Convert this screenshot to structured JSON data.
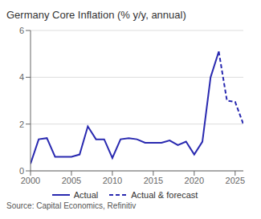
{
  "chart_data": {
    "type": "line",
    "title": "Germany Core Inflation (% y/y, annual)",
    "source": "Source: Capital Economics, Refinitiv",
    "series": [
      {
        "name": "Actual",
        "color": "#2929B0",
        "line_style": "solid",
        "x": [
          2000,
          2001,
          2002,
          2003,
          2004,
          2005,
          2006,
          2007,
          2008,
          2009,
          2010,
          2011,
          2012,
          2013,
          2014,
          2015,
          2016,
          2017,
          2018,
          2019,
          2020,
          2021,
          2022,
          2023
        ],
        "values": [
          0.3,
          1.35,
          1.4,
          0.6,
          0.6,
          0.6,
          0.7,
          1.9,
          1.35,
          1.35,
          0.55,
          1.35,
          1.4,
          1.35,
          1.2,
          1.2,
          1.2,
          1.3,
          1.1,
          1.25,
          0.7,
          1.25,
          4.0,
          5.1
        ]
      },
      {
        "name": "Actual & forecast",
        "color": "#2929B0",
        "line_style": "dashed",
        "x": [
          2023,
          2024,
          2025,
          2026
        ],
        "values": [
          5.1,
          3.0,
          2.95,
          2.0
        ]
      }
    ],
    "xlim": [
      2000,
      2026
    ],
    "xticks": [
      2000,
      2005,
      2010,
      2015,
      2020,
      2025
    ],
    "ylim": [
      0,
      6
    ],
    "yticks": [
      0,
      2,
      4,
      6
    ],
    "grid": true,
    "legend": "bottom"
  }
}
